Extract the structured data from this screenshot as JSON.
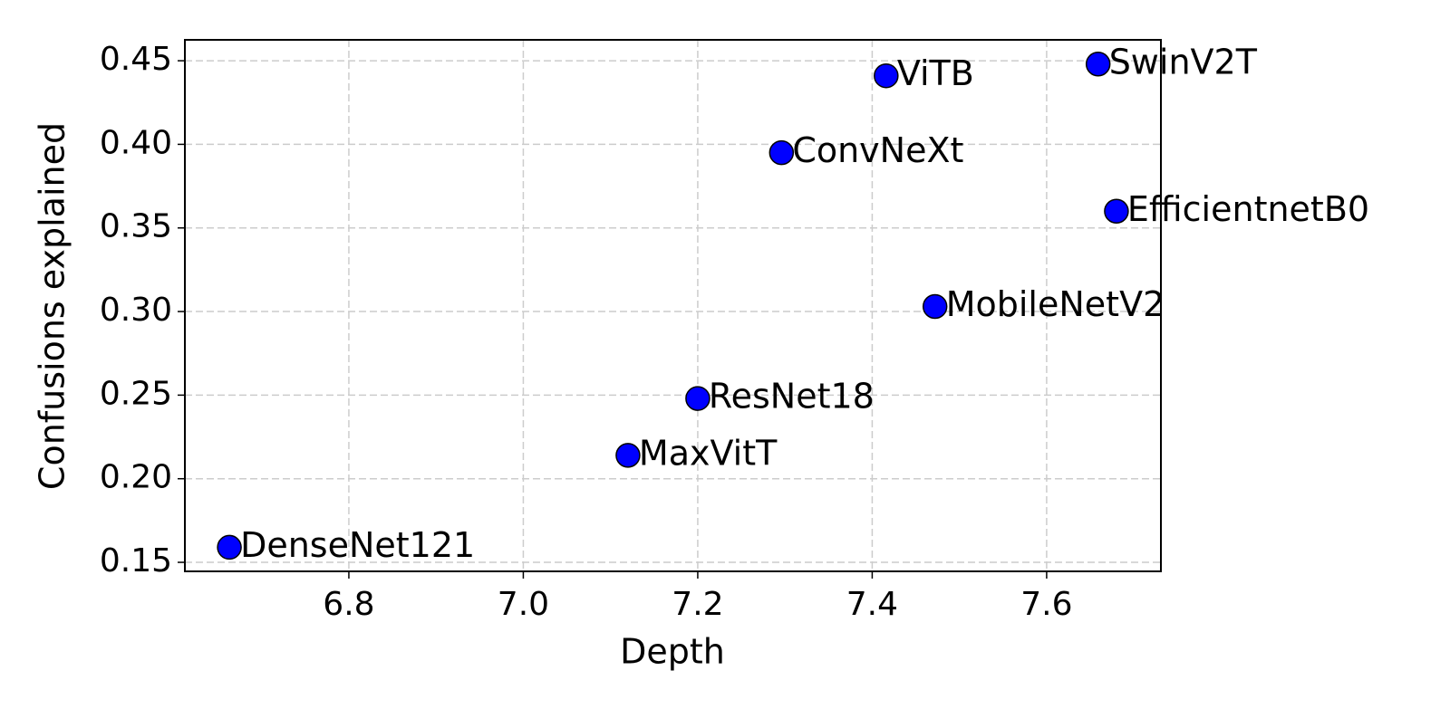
{
  "chart_data": {
    "type": "scatter",
    "xlabel": "Depth",
    "ylabel": "Confusions explained",
    "x": [
      6.663,
      7.12,
      7.2,
      7.296,
      7.416,
      7.472,
      7.659,
      7.68
    ],
    "y": [
      0.159,
      0.214,
      0.248,
      0.395,
      0.441,
      0.303,
      0.448,
      0.36
    ],
    "labels": [
      "DenseNet121",
      "MaxVitT",
      "ResNet18",
      "ConvNeXt",
      "ViTB",
      "MobileNetV2",
      "SwinV2T",
      "EfficientnetB0"
    ],
    "color": "#0000ff",
    "xlim": [
      6.612,
      7.731
    ],
    "ylim": [
      0.1446,
      0.4625
    ],
    "xticks": [
      6.8,
      {
        "value": 7.0,
        "label": "7.0"
      },
      7.2,
      7.4,
      7.6
    ],
    "yticks": [
      0.15,
      {
        "value": 0.2,
        "label": "0.20"
      },
      0.25,
      {
        "value": 0.3,
        "label": "0.30"
      },
      0.35,
      {
        "value": 0.4,
        "label": "0.40"
      },
      0.45
    ],
    "grid": true
  }
}
